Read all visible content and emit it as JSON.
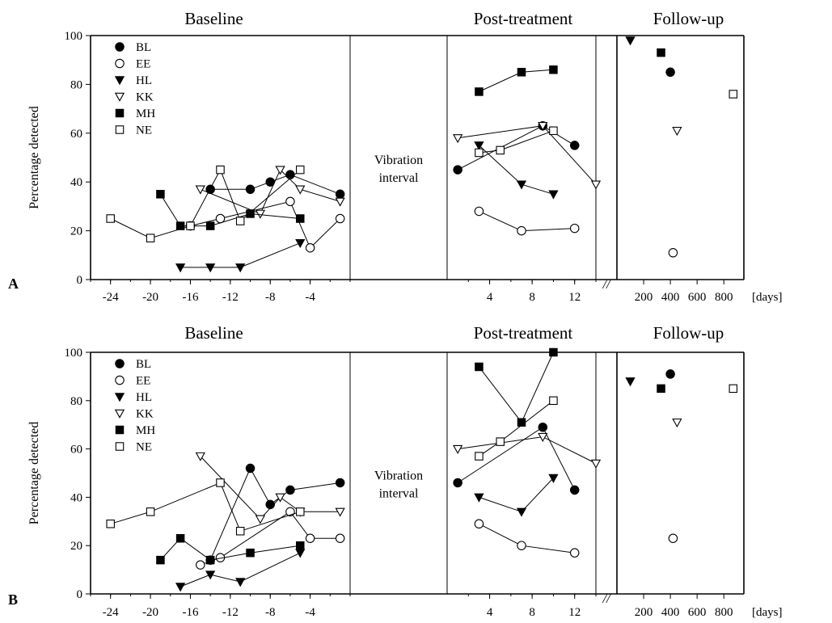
{
  "panels": [
    {
      "id": "A",
      "panel_label": "A",
      "ylabel": "Percentage detected",
      "section_titles": [
        "Baseline",
        "Post-treatment",
        "Follow-up"
      ],
      "interval_label": [
        "Vibration",
        "interval"
      ],
      "yticks": [
        "0",
        "20",
        "40",
        "60",
        "80",
        "100"
      ],
      "xticks_baseline": [
        "-24",
        "-20",
        "-16",
        "-12",
        "-8",
        "-4"
      ],
      "xticks_post": [
        "4",
        "8",
        "12"
      ],
      "xticks_follow": [
        "200",
        "400",
        "600",
        "800"
      ],
      "xunit": "[days]",
      "break_mark": "//"
    },
    {
      "id": "B",
      "panel_label": "B",
      "ylabel": "Percentage detected",
      "section_titles": [
        "Baseline",
        "Post-treatment",
        "Follow-up"
      ],
      "interval_label": [
        "Vibration",
        "interval"
      ],
      "yticks": [
        "0",
        "20",
        "40",
        "60",
        "80",
        "100"
      ],
      "xticks_baseline": [
        "-24",
        "-20",
        "-16",
        "-12",
        "-8",
        "-4"
      ],
      "xticks_post": [
        "4",
        "8",
        "12"
      ],
      "xticks_follow": [
        "200",
        "400",
        "600",
        "800"
      ],
      "xunit": "[days]",
      "break_mark": "//"
    }
  ],
  "chart_data": [
    {
      "type": "scatter",
      "panel": "A",
      "ylabel": "Percentage detected",
      "ylim": [
        0,
        100
      ],
      "sections": {
        "baseline": {
          "title": "Baseline",
          "xlim": [
            -26,
            0
          ]
        },
        "interval": {
          "label": "Vibration interval"
        },
        "post": {
          "title": "Post-treatment",
          "xlim": [
            0,
            14
          ]
        },
        "follow": {
          "title": "Follow-up",
          "xlim": [
            0,
            950
          ],
          "xunit": "[days]"
        }
      },
      "legend": [
        "BL",
        "EE",
        "HL",
        "KK",
        "MH",
        "NE"
      ],
      "series": [
        {
          "name": "BL",
          "marker": "filled-circle",
          "baseline": [
            [
              -14,
              37
            ],
            [
              -10,
              37
            ],
            [
              -8,
              40
            ],
            [
              -6,
              43
            ],
            [
              -1,
              35
            ]
          ],
          "post": [
            [
              1,
              45
            ],
            [
              9,
              63
            ],
            [
              12,
              55
            ]
          ],
          "follow": [
            [
              400,
              85
            ]
          ]
        },
        {
          "name": "EE",
          "marker": "open-circle",
          "baseline": [
            [
              -16,
              22
            ],
            [
              -13,
              25
            ],
            [
              -6,
              32
            ],
            [
              -4,
              13
            ],
            [
              -1,
              25
            ]
          ],
          "post": [
            [
              3,
              28
            ],
            [
              7,
              20
            ],
            [
              12,
              21
            ]
          ],
          "follow": [
            [
              420,
              11
            ]
          ]
        },
        {
          "name": "HL",
          "marker": "filled-triangle",
          "baseline": [
            [
              -17,
              5
            ],
            [
              -14,
              5
            ],
            [
              -11,
              5
            ],
            [
              -5,
              15
            ]
          ],
          "post": [
            [
              3,
              55
            ],
            [
              7,
              39
            ],
            [
              10,
              35
            ]
          ],
          "follow": [
            [
              100,
              98
            ]
          ]
        },
        {
          "name": "KK",
          "marker": "open-triangle",
          "baseline": [
            [
              -15,
              37
            ],
            [
              -9,
              27
            ],
            [
              -7,
              45
            ],
            [
              -5,
              37
            ],
            [
              -1,
              32
            ]
          ],
          "post": [
            [
              1,
              58
            ],
            [
              9,
              63
            ],
            [
              14,
              39
            ]
          ],
          "follow": [
            [
              450,
              61
            ]
          ]
        },
        {
          "name": "MH",
          "marker": "filled-square",
          "baseline": [
            [
              -19,
              35
            ],
            [
              -17,
              22
            ],
            [
              -14,
              22
            ],
            [
              -10,
              27
            ],
            [
              -5,
              25
            ]
          ],
          "post": [
            [
              3,
              77
            ],
            [
              7,
              85
            ],
            [
              10,
              86
            ]
          ],
          "follow": [
            [
              330,
              93
            ]
          ]
        },
        {
          "name": "NE",
          "marker": "open-square",
          "baseline": [
            [
              -24,
              25
            ],
            [
              -20,
              17
            ],
            [
              -16,
              22
            ],
            [
              -13,
              45
            ],
            [
              -11,
              24
            ],
            [
              -5,
              45
            ]
          ],
          "post": [
            [
              3,
              52
            ],
            [
              5,
              53
            ],
            [
              10,
              61
            ]
          ],
          "follow": [
            [
              870,
              76
            ]
          ]
        }
      ]
    },
    {
      "type": "scatter",
      "panel": "B",
      "ylabel": "Percentage detected",
      "ylim": [
        0,
        100
      ],
      "sections": {
        "baseline": {
          "title": "Baseline",
          "xlim": [
            -26,
            0
          ]
        },
        "interval": {
          "label": "Vibration interval"
        },
        "post": {
          "title": "Post-treatment",
          "xlim": [
            0,
            14
          ]
        },
        "follow": {
          "title": "Follow-up",
          "xlim": [
            0,
            950
          ],
          "xunit": "[days]"
        }
      },
      "legend": [
        "BL",
        "EE",
        "HL",
        "KK",
        "MH",
        "NE"
      ],
      "series": [
        {
          "name": "BL",
          "marker": "filled-circle",
          "baseline": [
            [
              -14,
              14
            ],
            [
              -10,
              52
            ],
            [
              -8,
              37
            ],
            [
              -6,
              43
            ],
            [
              -1,
              46
            ]
          ],
          "post": [
            [
              1,
              46
            ],
            [
              9,
              69
            ],
            [
              12,
              43
            ]
          ],
          "follow": [
            [
              400,
              91
            ]
          ]
        },
        {
          "name": "EE",
          "marker": "open-circle",
          "baseline": [
            [
              -15,
              12
            ],
            [
              -13,
              15
            ],
            [
              -6,
              34
            ],
            [
              -4,
              23
            ],
            [
              -1,
              23
            ]
          ],
          "post": [
            [
              3,
              29
            ],
            [
              7,
              20
            ],
            [
              12,
              17
            ]
          ],
          "follow": [
            [
              420,
              23
            ]
          ]
        },
        {
          "name": "HL",
          "marker": "filled-triangle",
          "baseline": [
            [
              -17,
              3
            ],
            [
              -14,
              8
            ],
            [
              -11,
              5
            ],
            [
              -5,
              17
            ]
          ],
          "post": [
            [
              3,
              40
            ],
            [
              7,
              34
            ],
            [
              10,
              48
            ]
          ],
          "follow": [
            [
              100,
              88
            ]
          ]
        },
        {
          "name": "KK",
          "marker": "open-triangle",
          "baseline": [
            [
              -15,
              57
            ],
            [
              -9,
              31
            ],
            [
              -7,
              40
            ],
            [
              -5,
              34
            ],
            [
              -1,
              34
            ]
          ],
          "post": [
            [
              1,
              60
            ],
            [
              9,
              65
            ],
            [
              14,
              54
            ]
          ],
          "follow": [
            [
              450,
              71
            ]
          ]
        },
        {
          "name": "MH",
          "marker": "filled-square",
          "baseline": [
            [
              -19,
              14
            ],
            [
              -17,
              23
            ],
            [
              -14,
              14
            ],
            [
              -10,
              17
            ],
            [
              -5,
              20
            ]
          ],
          "post": [
            [
              3,
              94
            ],
            [
              7,
              71
            ],
            [
              10,
              100
            ]
          ],
          "follow": [
            [
              330,
              85
            ]
          ]
        },
        {
          "name": "NE",
          "marker": "open-square",
          "baseline": [
            [
              -24,
              29
            ],
            [
              -20,
              34
            ],
            [
              -13,
              46
            ],
            [
              -11,
              26
            ],
            [
              -5,
              34
            ]
          ],
          "post": [
            [
              3,
              57
            ],
            [
              5,
              63
            ],
            [
              10,
              80
            ]
          ],
          "follow": [
            [
              870,
              85
            ]
          ]
        }
      ]
    }
  ]
}
